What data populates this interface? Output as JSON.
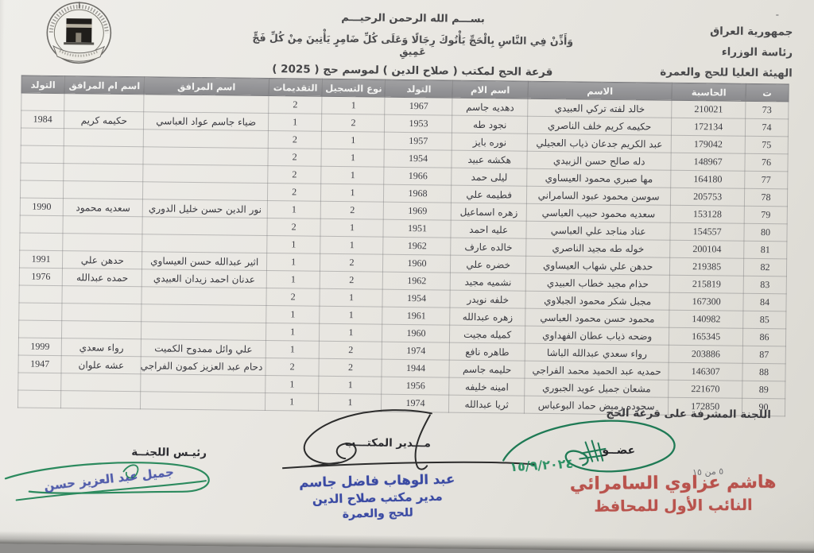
{
  "header": {
    "bismillah": "بســـم الله الرحمن الرحيـــم",
    "verse": "وَأَذِّنْ فِي النَّاسِ بِالْحَجِّ يَأْتُوكَ رِجَالًا وَعَلَى كُلِّ ضَامِرٍ يَأْتِينَ مِنْ كُلِّ فَجٍّ عَمِيقِ",
    "lottery_line": "قرعة الحج لمكتب (  صلاح الدين  ) لموسم حج (  2025  )",
    "right_lines": [
      "جمهورية العراق",
      "رئاسة الوزراء",
      "الهيئة العليا للحج والعمرة"
    ],
    "seal_name": "شعار الهيئة العليا للحج والعمرة",
    "stray_mark": "-"
  },
  "table": {
    "columns": [
      {
        "key": "no",
        "label": "ت"
      },
      {
        "key": "computer_id",
        "label": "الحاسبة"
      },
      {
        "key": "name",
        "label": "الاسم"
      },
      {
        "key": "mother_name",
        "label": "اسم الام"
      },
      {
        "key": "birth_year",
        "label": "التولد"
      },
      {
        "key": "registration_type",
        "label": "نوع التسجيل"
      },
      {
        "key": "submissions",
        "label": "التقديمات"
      },
      {
        "key": "companion_name",
        "label": "اسم المرافق"
      },
      {
        "key": "companion_mother",
        "label": "اسم ام المرافق"
      },
      {
        "key": "companion_birth",
        "label": "التولد"
      }
    ],
    "rows": [
      {
        "no": "73",
        "computer_id": "210021",
        "name": "خالد لفته تركي العبيدي",
        "mother_name": "دهديه جاسم",
        "birth_year": "1967",
        "registration_type": "1",
        "submissions": "2",
        "companion_name": "",
        "companion_mother": "",
        "companion_birth": ""
      },
      {
        "no": "74",
        "computer_id": "172134",
        "name": "حكيمه كريم خلف الناصري",
        "mother_name": "نجود طه",
        "birth_year": "1953",
        "registration_type": "2",
        "submissions": "1",
        "companion_name": "ضياء جاسم عواد العباسي",
        "companion_mother": "حكيمه كريم",
        "companion_birth": "1984"
      },
      {
        "no": "75",
        "computer_id": "179042",
        "name": "عبد الكريم جدعان ذياب العجيلي",
        "mother_name": "نوره بايز",
        "birth_year": "1957",
        "registration_type": "1",
        "submissions": "2",
        "companion_name": "",
        "companion_mother": "",
        "companion_birth": ""
      },
      {
        "no": "76",
        "computer_id": "148967",
        "name": "دله صالح حسن الزبيدي",
        "mother_name": "هكشه عبيد",
        "birth_year": "1954",
        "registration_type": "1",
        "submissions": "2",
        "companion_name": "",
        "companion_mother": "",
        "companion_birth": ""
      },
      {
        "no": "77",
        "computer_id": "164180",
        "name": "مها صبري محمود العيساوي",
        "mother_name": "ليلى حمد",
        "birth_year": "1966",
        "registration_type": "1",
        "submissions": "2",
        "companion_name": "",
        "companion_mother": "",
        "companion_birth": ""
      },
      {
        "no": "78",
        "computer_id": "205753",
        "name": "سوسن محمود عبود السامراني",
        "mother_name": "فطيمه علي",
        "birth_year": "1968",
        "registration_type": "1",
        "submissions": "2",
        "companion_name": "",
        "companion_mother": "",
        "companion_birth": ""
      },
      {
        "no": "79",
        "computer_id": "153128",
        "name": "سعديه محمود حبيب العباسي",
        "mother_name": "زهره اسماعيل",
        "birth_year": "1969",
        "registration_type": "2",
        "submissions": "1",
        "companion_name": "نور الدين حسن خليل الدوري",
        "companion_mother": "سعديه محمود",
        "companion_birth": "1990"
      },
      {
        "no": "80",
        "computer_id": "154557",
        "name": "عناد مناجد علي العباسي",
        "mother_name": "عليه احمد",
        "birth_year": "1951",
        "registration_type": "1",
        "submissions": "2",
        "companion_name": "",
        "companion_mother": "",
        "companion_birth": ""
      },
      {
        "no": "81",
        "computer_id": "200104",
        "name": "خوله طه مجيد الناصري",
        "mother_name": "خالده عارف",
        "birth_year": "1962",
        "registration_type": "1",
        "submissions": "1",
        "companion_name": "",
        "companion_mother": "",
        "companion_birth": ""
      },
      {
        "no": "82",
        "computer_id": "219385",
        "name": "حدهن علي شهاب العيساوي",
        "mother_name": "خضره علي",
        "birth_year": "1960",
        "registration_type": "2",
        "submissions": "1",
        "companion_name": "اثير عبدالله حسن العيساوي",
        "companion_mother": "حدهن علي",
        "companion_birth": "1991"
      },
      {
        "no": "83",
        "computer_id": "215819",
        "name": "حذام مجيد خطاب العبيدي",
        "mother_name": "نشميه مجيد",
        "birth_year": "1962",
        "registration_type": "2",
        "submissions": "1",
        "companion_name": "عدنان احمد زيدان العبيدي",
        "companion_mother": "حمده عبدالله",
        "companion_birth": "1976"
      },
      {
        "no": "84",
        "computer_id": "167300",
        "name": "مجبل شكر محمود الجبلاوي",
        "mother_name": "خلفه نويدر",
        "birth_year": "1954",
        "registration_type": "1",
        "submissions": "2",
        "companion_name": "",
        "companion_mother": "",
        "companion_birth": ""
      },
      {
        "no": "85",
        "computer_id": "140982",
        "name": "محمود حسن محمود العباسي",
        "mother_name": "زهره عبدالله",
        "birth_year": "1961",
        "registration_type": "1",
        "submissions": "1",
        "companion_name": "",
        "companion_mother": "",
        "companion_birth": ""
      },
      {
        "no": "86",
        "computer_id": "165345",
        "name": "وضحه ذياب عطان الفهداوي",
        "mother_name": "كميله مجيت",
        "birth_year": "1960",
        "registration_type": "1",
        "submissions": "1",
        "companion_name": "",
        "companion_mother": "",
        "companion_birth": ""
      },
      {
        "no": "87",
        "computer_id": "203886",
        "name": "رواء سعدي عبدالله الباشا",
        "mother_name": "طاهره نافع",
        "birth_year": "1974",
        "registration_type": "2",
        "submissions": "1",
        "companion_name": "علي وائل ممدوح الكميت",
        "companion_mother": "رواء سعدي",
        "companion_birth": "1999"
      },
      {
        "no": "88",
        "computer_id": "146307",
        "name": "حمديه عبد الحميد محمد الفراجي",
        "mother_name": "حليمه جاسم",
        "birth_year": "1944",
        "registration_type": "2",
        "submissions": "2",
        "companion_name": "دحام عبد العزيز كمون الفراجي",
        "companion_mother": "عشه علوان",
        "companion_birth": "1947"
      },
      {
        "no": "89",
        "computer_id": "221670",
        "name": "مشعان جميل عويد الجبوري",
        "mother_name": "امينه خليفه",
        "birth_year": "1956",
        "registration_type": "1",
        "submissions": "1",
        "companion_name": "",
        "companion_mother": "",
        "companion_birth": ""
      },
      {
        "no": "90",
        "computer_id": "172850",
        "name": "سجوده رميض حماد البوعباس",
        "mother_name": "ثريا عبدالله",
        "birth_year": "1974",
        "registration_type": "1",
        "submissions": "1",
        "companion_name": "",
        "companion_mother": "",
        "companion_birth": ""
      }
    ]
  },
  "footer": {
    "supervising_committee": "اللجنة المشرفة على قرعة الحج",
    "member_label": "عضــو",
    "handwritten_date": "١٥/٩/٢٠٢٤",
    "page_note": "٥ من ١٥",
    "red_stamp": {
      "line1": "هاشم عزاوي السامرائي",
      "line2": "النائب الأول للمحافظ"
    },
    "office_director_label": "مـــدير المكتـــب",
    "blue_stamp_center": {
      "line1": "عبد الوهاب فاضل جاسم",
      "line2": "مدير مكتب صلاح الدين",
      "line3": "للحج والعمرة"
    },
    "chairman_label": "رئيـس اللجنــة",
    "chairman_stamp": "جميل عبد العزيز حسن"
  },
  "colors": {
    "paper": "#e9e7e2",
    "table_header_bg": "#8f8f92",
    "ink": "#3a3a40",
    "green_signature": "#1f7a55",
    "red_stamp": "#b5443e",
    "blue_stamp": "#2e3f9f"
  }
}
